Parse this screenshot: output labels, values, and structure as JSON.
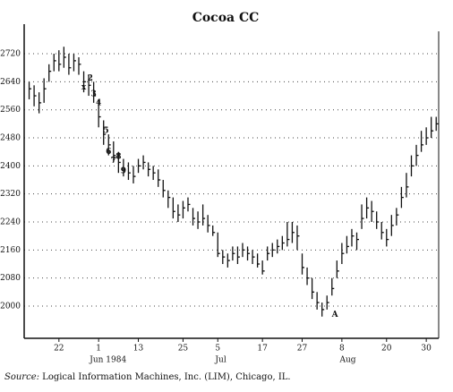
{
  "chart_data": {
    "type": "ohlc",
    "title": "Cocoa CC",
    "source_prefix": "Source:",
    "source": "Logical Information Machines, Inc. (LIM), Chicago, IL.",
    "x": [
      0,
      1,
      2,
      3,
      4,
      5,
      6,
      7,
      8,
      9,
      10,
      11,
      12,
      13,
      14,
      15,
      16,
      17,
      18,
      19,
      20,
      21,
      22,
      23,
      24,
      25,
      26,
      27,
      28,
      29,
      30,
      31,
      32,
      33,
      34,
      35,
      36,
      37,
      38,
      39,
      40,
      41,
      42,
      43,
      44,
      45,
      46,
      47,
      48,
      49,
      50,
      51,
      52,
      53,
      54,
      55,
      56,
      57,
      58,
      59,
      60,
      61,
      62,
      63,
      64,
      65,
      66,
      67,
      68,
      69,
      70,
      71,
      72,
      73,
      74,
      75,
      76,
      77,
      78,
      79,
      80,
      81,
      82
    ],
    "high": [
      2640,
      2630,
      2610,
      2650,
      2690,
      2720,
      2730,
      2740,
      2720,
      2720,
      2710,
      2670,
      2660,
      2640,
      2590,
      2530,
      2490,
      2470,
      2440,
      2420,
      2410,
      2400,
      2420,
      2430,
      2410,
      2400,
      2390,
      2360,
      2330,
      2310,
      2290,
      2300,
      2310,
      2280,
      2270,
      2290,
      2260,
      2230,
      2210,
      2160,
      2150,
      2170,
      2170,
      2180,
      2170,
      2160,
      2150,
      2130,
      2170,
      2180,
      2190,
      2200,
      2240,
      2240,
      2230,
      2150,
      2110,
      2080,
      2040,
      2010,
      2030,
      2080,
      2130,
      2180,
      2200,
      2220,
      2210,
      2290,
      2310,
      2300,
      2270,
      2240,
      2220,
      2260,
      2280,
      2340,
      2380,
      2430,
      2460,
      2500,
      2510,
      2540,
      2540
    ],
    "low": [
      2590,
      2570,
      2550,
      2580,
      2640,
      2670,
      2670,
      2680,
      2660,
      2670,
      2660,
      2610,
      2600,
      2580,
      2510,
      2460,
      2430,
      2410,
      2380,
      2370,
      2360,
      2350,
      2380,
      2390,
      2370,
      2360,
      2340,
      2310,
      2280,
      2250,
      2240,
      2250,
      2270,
      2230,
      2220,
      2230,
      2210,
      2200,
      2140,
      2120,
      2110,
      2130,
      2120,
      2140,
      2130,
      2120,
      2110,
      2090,
      2130,
      2140,
      2150,
      2160,
      2170,
      2180,
      2160,
      2090,
      2060,
      2020,
      1990,
      1970,
      1990,
      2030,
      2080,
      2120,
      2150,
      2170,
      2160,
      2220,
      2250,
      2240,
      2220,
      2190,
      2170,
      2200,
      2230,
      2280,
      2310,
      2370,
      2400,
      2440,
      2460,
      2480,
      2500
    ],
    "close": [
      2620,
      2600,
      2580,
      2620,
      2670,
      2700,
      2690,
      2710,
      2680,
      2700,
      2690,
      2640,
      2630,
      2600,
      2540,
      2490,
      2460,
      2430,
      2410,
      2390,
      2380,
      2370,
      2400,
      2410,
      2390,
      2380,
      2360,
      2330,
      2310,
      2270,
      2260,
      2280,
      2290,
      2250,
      2240,
      2250,
      2230,
      2210,
      2150,
      2140,
      2130,
      2150,
      2140,
      2160,
      2150,
      2140,
      2120,
      2100,
      2150,
      2160,
      2170,
      2180,
      2190,
      2210,
      2200,
      2110,
      2080,
      2040,
      2010,
      1990,
      2010,
      2050,
      2100,
      2150,
      2170,
      2200,
      2190,
      2250,
      2280,
      2270,
      2240,
      2210,
      2190,
      2230,
      2260,
      2310,
      2340,
      2400,
      2430,
      2460,
      2480,
      2500,
      2520
    ],
    "color": "#111111",
    "xlim": [
      -1,
      82.5
    ],
    "xticks": [
      {
        "value": 6,
        "label": "22"
      },
      {
        "value": 14,
        "label": "1"
      },
      {
        "value": 22,
        "label": "13"
      },
      {
        "value": 31,
        "label": "25"
      },
      {
        "value": 38,
        "label": "5"
      },
      {
        "value": 47,
        "label": "17"
      },
      {
        "value": 55,
        "label": "27"
      },
      {
        "value": 63,
        "label": "8"
      },
      {
        "value": 72,
        "label": "20"
      },
      {
        "value": 80,
        "label": "30"
      }
    ],
    "month_labels": [
      {
        "value": 15.9,
        "label": "Jun 1984"
      },
      {
        "value": 38.6,
        "label": "Jul"
      },
      {
        "value": 64.2,
        "label": "Aug"
      }
    ],
    "ylim": [
      1908,
      2784
    ],
    "yticks": [
      2000,
      2080,
      2160,
      2240,
      2320,
      2400,
      2480,
      2560,
      2640,
      2720
    ],
    "grid": true,
    "annotations": [
      {
        "text": "x",
        "x": 11,
        "y": 2625
      },
      {
        "text": "2",
        "x": 12.3,
        "y": 2650
      },
      {
        "text": "3",
        "x": 13,
        "y": 2605
      },
      {
        "text": "4",
        "x": 14,
        "y": 2580
      },
      {
        "text": "5",
        "x": 15.5,
        "y": 2500
      },
      {
        "text": "6",
        "x": 16,
        "y": 2440
      },
      {
        "text": "7",
        "x": 17,
        "y": 2415
      },
      {
        "text": "8",
        "x": 18,
        "y": 2426
      },
      {
        "text": "9",
        "x": 19,
        "y": 2385
      },
      {
        "text": "A",
        "x": 61.6,
        "y": 1976
      }
    ]
  }
}
